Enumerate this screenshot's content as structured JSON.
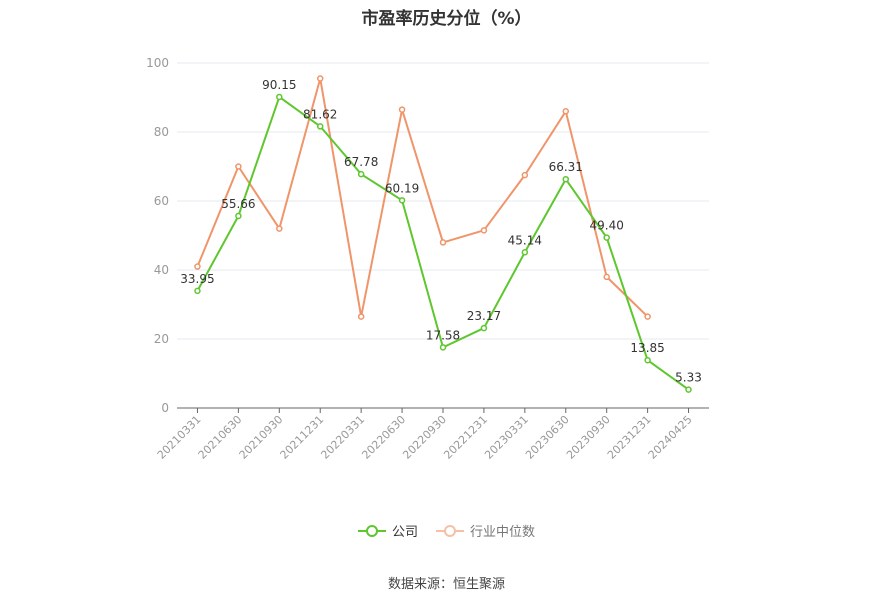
{
  "chart_title": "市盈率历史分位（%）",
  "source": "数据来源：恒生聚源",
  "legend": {
    "company": "公司",
    "industry": "行业中位数"
  },
  "colors": {
    "company": "#5ec72e",
    "industry": "#f0956a",
    "grid": "#e6e9f0",
    "axis": "#999999",
    "label": "#333333"
  },
  "chart_data": {
    "type": "line",
    "title": "市盈率历史分位（%）",
    "categories": [
      "20210331",
      "20210630",
      "20210930",
      "20211231",
      "20220331",
      "20220630",
      "20220930",
      "20221231",
      "20230331",
      "20230630",
      "20230930",
      "20231231",
      "20240425"
    ],
    "ylim": [
      0,
      100
    ],
    "yticks": [
      0,
      20,
      40,
      60,
      80,
      100
    ],
    "grid": true,
    "legend_position": "bottom",
    "series": [
      {
        "name": "公司",
        "values": [
          33.95,
          55.66,
          90.15,
          81.62,
          67.78,
          60.19,
          17.58,
          23.17,
          45.14,
          66.31,
          49.4,
          13.85,
          5.33
        ],
        "labels": [
          "33.95",
          "55.66",
          "90.15",
          "81.62",
          "67.78",
          "60.19",
          "17.58",
          "23.17",
          "45.14",
          "66.31",
          "49.40",
          "13.85",
          "5.33"
        ]
      },
      {
        "name": "行业中位数",
        "values": [
          41,
          70,
          52,
          95.5,
          26.5,
          86.5,
          48,
          51.5,
          67.5,
          86,
          38,
          26.5,
          null
        ]
      }
    ]
  }
}
